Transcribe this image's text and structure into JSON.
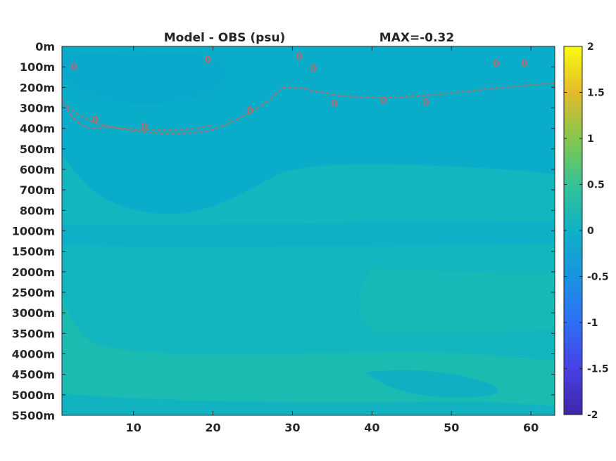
{
  "chart_data": {
    "type": "heatmap",
    "title": "Model - OBS (psu)",
    "title_right": "MAX=-0.32",
    "xlabel": "",
    "ylabel": "",
    "xlim": [
      1,
      63
    ],
    "x_ticks": [
      10,
      20,
      30,
      40,
      50,
      60
    ],
    "y_categories": [
      "0m",
      "100m",
      "200m",
      "300m",
      "400m",
      "500m",
      "600m",
      "700m",
      "800m",
      "1000m",
      "1500m",
      "2000m",
      "2500m",
      "3000m",
      "3500m",
      "4000m",
      "4500m",
      "5000m",
      "5500m"
    ],
    "colorbar": {
      "colormap": "parula",
      "range": [
        -2,
        2
      ],
      "ticks": [
        2,
        1.5,
        1,
        0.5,
        0,
        -0.5,
        -1,
        -1.5,
        -2
      ],
      "tick_labels": [
        "2",
        "1.5",
        "1",
        "0.5",
        "0",
        "-0.5",
        "-1",
        "-1.5",
        "-2"
      ]
    },
    "contour_label": "0",
    "colors": {
      "field_near_zero": "#12b6bf",
      "field_slightly_negative": "#0aaec8",
      "field_slightly_positive": "#1cbcb0",
      "contour": "#c06a63"
    }
  }
}
